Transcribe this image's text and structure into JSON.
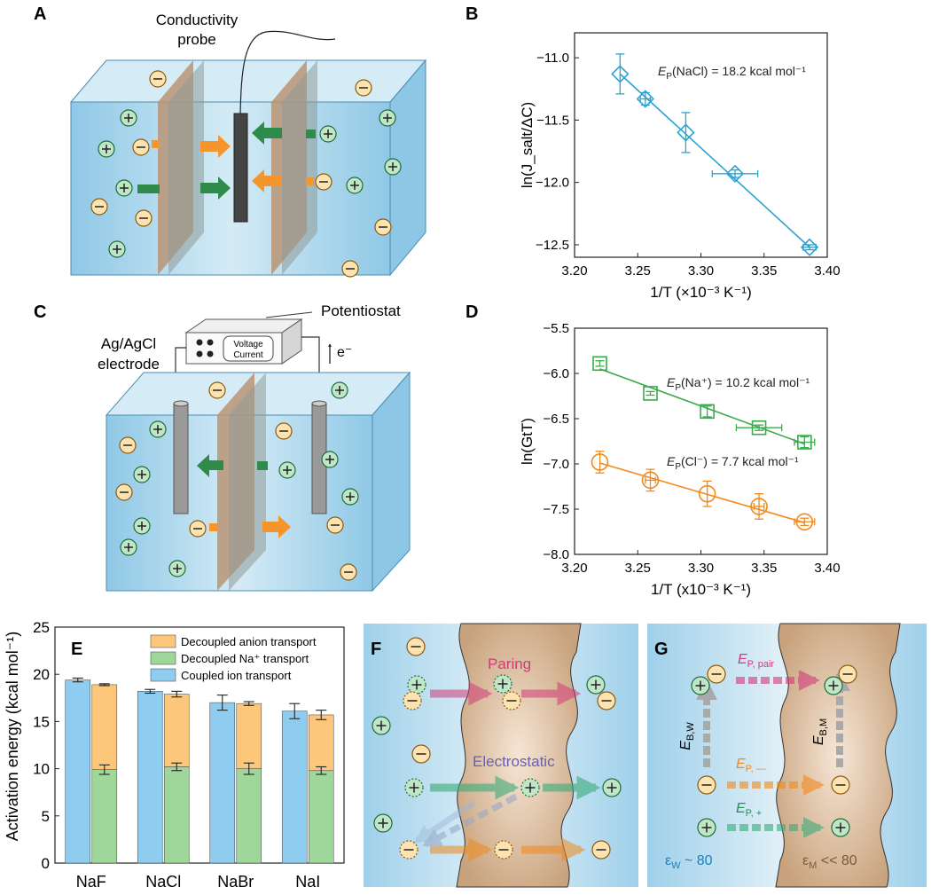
{
  "panels": {
    "A": {
      "letter": "A",
      "probe_label_1": "Conductivity",
      "probe_label_2": "probe",
      "plus": "+",
      "minus": "−"
    },
    "B": {
      "letter": "B"
    },
    "C": {
      "letter": "C",
      "potentiostat": "Potentiostat",
      "voltage": "Voltage",
      "current": "Current",
      "electrode_1": "Ag/AgCl",
      "electrode_2": "electrode",
      "electron": "e⁻"
    },
    "D": {
      "letter": "D"
    },
    "E": {
      "letter": "E"
    },
    "F": {
      "letter": "F",
      "pairing": "Paring",
      "electrostatic": "Electrostatic"
    },
    "G": {
      "letter": "G",
      "ep_pair_E": "E",
      "ep_pair_sub": "P, pair",
      "ep_minus_E": "E",
      "ep_minus_sub": "P, —",
      "ep_plus_E": "E",
      "ep_plus_sub": "P, +",
      "ebw_E": "E",
      "ebw_sub": "B,W",
      "ebm_E": "E",
      "ebm_sub": "B,M",
      "eps_w_sym": "ε",
      "eps_w_sub": "W",
      "eps_w_val": " ~ 80",
      "eps_m_sym": "ε",
      "eps_m_sub": "M",
      "eps_m_val": " << 80"
    }
  },
  "colors": {
    "water_blue": "#a8d3ea",
    "membrane_tan": "#c9a37e",
    "cation_green": "#2e8b57",
    "anion_orange": "#f5a623",
    "series_b": "#29a3d4",
    "series_na": "#3aab4a",
    "series_cl": "#f08a1c",
    "coupled": "#8ecdf0",
    "decoupled_na": "#9fd69a",
    "decoupled_anion": "#fdc77b",
    "pair_magenta": "#d23b7a",
    "electro_purple": "#6a5fb0"
  },
  "chart_data": [
    {
      "panel": "B",
      "type": "scatter",
      "xlabel": "1/T (×10⁻³ K⁻¹)",
      "ylabel": "ln(J_salt/ΔC)",
      "xlim": [
        3.2,
        3.4
      ],
      "ylim": [
        -12.6,
        -10.8
      ],
      "xticks": [
        "3.20",
        "3.25",
        "3.30",
        "3.35",
        "3.40"
      ],
      "yticks": [
        "−11.0",
        "−11.5",
        "−12.0",
        "−12.5"
      ],
      "ytick_values": [
        -11.0,
        -11.5,
        -12.0,
        -12.5
      ],
      "xtick_values": [
        3.2,
        3.25,
        3.3,
        3.35,
        3.4
      ],
      "series": [
        {
          "color": "#29a3d4",
          "marker": "diamond",
          "points": [
            {
              "x": 3.236,
              "y": -11.13,
              "xerr": 0.0,
              "yerr": 0.16
            },
            {
              "x": 3.256,
              "y": -11.33,
              "xerr": 0.004,
              "yerr": 0.05
            },
            {
              "x": 3.288,
              "y": -11.6,
              "xerr": 0.0,
              "yerr": 0.16
            },
            {
              "x": 3.327,
              "y": -11.93,
              "xerr": 0.018,
              "yerr": 0.03
            },
            {
              "x": 3.386,
              "y": -12.52,
              "xerr": 0.005,
              "yerr": 0.02
            }
          ],
          "fit": [
            [
              3.236,
              -11.13
            ],
            [
              3.386,
              -12.52
            ]
          ]
        }
      ],
      "annotations": [
        {
          "E": "E",
          "sub": "P",
          "rest": "(NaCl) = 18.2 kcal mol⁻¹"
        }
      ]
    },
    {
      "panel": "D",
      "type": "scatter",
      "xlabel": "1/T (x10⁻³ K⁻¹)",
      "ylabel": "ln(GtT)",
      "xlim": [
        3.2,
        3.4
      ],
      "ylim": [
        -8.0,
        -5.5
      ],
      "xticks": [
        "3.20",
        "3.25",
        "3.30",
        "3.35",
        "3.40"
      ],
      "yticks": [
        "−5.5",
        "−6.0",
        "−6.5",
        "−7.0",
        "−7.5",
        "−8.0"
      ],
      "ytick_values": [
        -5.5,
        -6.0,
        -6.5,
        -7.0,
        -7.5,
        -8.0
      ],
      "xtick_values": [
        3.2,
        3.25,
        3.3,
        3.35,
        3.4
      ],
      "series": [
        {
          "color": "#3aab4a",
          "marker": "square",
          "points": [
            {
              "x": 3.22,
              "y": -5.89,
              "xerr": 0.0,
              "yerr": 0.03
            },
            {
              "x": 3.26,
              "y": -6.22,
              "xerr": 0.0,
              "yerr": 0.02
            },
            {
              "x": 3.305,
              "y": -6.42,
              "xerr": 0.0,
              "yerr": 0.06
            },
            {
              "x": 3.346,
              "y": -6.6,
              "xerr": 0.018,
              "yerr": 0.03
            },
            {
              "x": 3.382,
              "y": -6.76,
              "xerr": 0.008,
              "yerr": 0.06
            }
          ],
          "fit": [
            [
              3.22,
              -5.95
            ],
            [
              3.382,
              -6.78
            ]
          ]
        },
        {
          "color": "#f08a1c",
          "marker": "circle",
          "points": [
            {
              "x": 3.22,
              "y": -6.98,
              "xerr": 0.0,
              "yerr": 0.12
            },
            {
              "x": 3.26,
              "y": -7.18,
              "xerr": 0.004,
              "yerr": 0.12
            },
            {
              "x": 3.305,
              "y": -7.33,
              "xerr": 0.0,
              "yerr": 0.14
            },
            {
              "x": 3.346,
              "y": -7.47,
              "xerr": 0.004,
              "yerr": 0.14
            },
            {
              "x": 3.382,
              "y": -7.64,
              "xerr": 0.008,
              "yerr": 0.04
            }
          ],
          "fit": [
            [
              3.22,
              -6.99
            ],
            [
              3.382,
              -7.65
            ]
          ]
        }
      ],
      "annotations": [
        {
          "E": "E",
          "sub": "P",
          "rest": "(Na⁺) = 10.2 kcal mol⁻¹"
        },
        {
          "E": "E",
          "sub": "P",
          "rest": "(Cl⁻) = 7.7 kcal mol⁻¹"
        }
      ]
    },
    {
      "panel": "E",
      "type": "bar",
      "ylabel": "Activation energy (kcal mol⁻¹)",
      "ylim": [
        0,
        25
      ],
      "yticks": [
        "0",
        "5",
        "10",
        "15",
        "20",
        "25"
      ],
      "ytick_values": [
        0,
        5,
        10,
        15,
        20,
        25
      ],
      "categories": [
        "NaF",
        "NaCl",
        "NaBr",
        "NaI"
      ],
      "series": [
        {
          "name": "Coupled ion transport",
          "color": "#8ecdf0",
          "values": [
            19.4,
            18.2,
            17.0,
            16.1
          ],
          "err": [
            0.2,
            0.2,
            0.8,
            0.8
          ]
        },
        {
          "name": "Decoupled Na⁺ transport",
          "color": "#9fd69a",
          "values": [
            9.9,
            10.2,
            10.0,
            9.8
          ],
          "err": [
            0.5,
            0.4,
            0.6,
            0.4
          ]
        },
        {
          "name": "Decoupled anion transport",
          "color": "#fdc77b",
          "values": [
            9.0,
            7.7,
            6.9,
            5.9
          ],
          "err": [
            0.1,
            0.3,
            0.2,
            0.5
          ]
        }
      ],
      "legend": [
        "Decoupled anion transport",
        "Decoupled Na⁺ transport",
        "Coupled ion transport"
      ]
    }
  ]
}
